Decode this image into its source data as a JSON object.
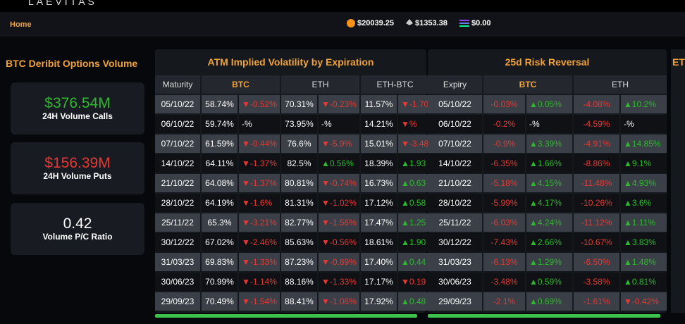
{
  "header": {
    "logo": "LAEVITAS"
  },
  "subheader": {
    "breadcrumb": "Home",
    "prices": [
      "$20039.25",
      "$1353.38",
      "$0.00"
    ]
  },
  "volume_panel": {
    "title": "BTC Deribit Options Volume",
    "cards": [
      {
        "value": "$376.54M",
        "label": "24H Volume Calls"
      },
      {
        "value": "$156.39M",
        "label": "24H Volume Puts"
      },
      {
        "value": "0.42",
        "label": "Volume P/C Ratio"
      }
    ]
  },
  "atm_table": {
    "title": "ATM Implied Volatility by Expiration",
    "columns": [
      "Maturity",
      "BTC",
      "ETH",
      "ETH-BTC"
    ],
    "rows": [
      [
        "05/10/22",
        "58.74%",
        "▼-0.52%",
        "70.31%",
        "▼-0.23%",
        "11.57%",
        "▼-1.70"
      ],
      [
        "06/10/22",
        "59.74%",
        "-%",
        "73.95%",
        "-%",
        "14.21%",
        "▼%"
      ],
      [
        "07/10/22",
        "61.59%",
        "▼-0.44%",
        "76.6%",
        "▼-5.9%",
        "15.01%",
        "▼-3.48"
      ],
      [
        "14/10/22",
        "64.11%",
        "▼-1.37%",
        "82.5%",
        "▲0.56%",
        "18.39%",
        "▲1.93"
      ],
      [
        "21/10/22",
        "64.08%",
        "▼-1.37%",
        "80.81%",
        "▼-0.74%",
        "16.73%",
        "▲0.63"
      ],
      [
        "28/10/22",
        "64.19%",
        "▼-1.6%",
        "81.31%",
        "▼-1.02%",
        "17.12%",
        "▲0.58"
      ],
      [
        "25/11/22",
        "65.3%",
        "▼-3.21%",
        "82.77%",
        "▼-1.56%",
        "17.47%",
        "▲1.25"
      ],
      [
        "30/12/22",
        "67.02%",
        "▼-2.46%",
        "85.63%",
        "▼-0.56%",
        "18.61%",
        "▲1.90"
      ],
      [
        "31/03/23",
        "69.83%",
        "▼-1.33%",
        "87.23%",
        "▼-0.89%",
        "17.40%",
        "▲0.44"
      ],
      [
        "30/06/23",
        "70.99%",
        "▼-1.14%",
        "88.16%",
        "▼-1.33%",
        "17.17%",
        "▼0.19"
      ],
      [
        "29/09/23",
        "70.49%",
        "▼-1.54%",
        "88.41%",
        "▼-1.06%",
        "17.92%",
        "▲0.48"
      ]
    ]
  },
  "rr_table": {
    "title": "25d Risk Reversal",
    "columns": [
      "Expiry",
      "BTC",
      "ETH"
    ],
    "rows": [
      [
        "05/10/22",
        "-0.03%",
        "▲0.05%",
        "-4.08%",
        "▲10.2%"
      ],
      [
        "06/10/22",
        "-0.2%",
        "-%",
        "-4.59%",
        "-%"
      ],
      [
        "07/10/22",
        "-0.9%",
        "▲3.39%",
        "-4.91%",
        "▲14.85%"
      ],
      [
        "14/10/22",
        "-6.35%",
        "▲1.66%",
        "-8.86%",
        "▲9.1%"
      ],
      [
        "21/10/22",
        "-5.18%",
        "▲4.15%",
        "-11.48%",
        "▲4.93%"
      ],
      [
        "28/10/22",
        "-5.99%",
        "▲4.17%",
        "-10.26%",
        "▲3.6%"
      ],
      [
        "25/11/22",
        "-6.03%",
        "▲4.24%",
        "-11.12%",
        "▲1.11%"
      ],
      [
        "30/12/22",
        "-7.43%",
        "▲2.66%",
        "-10.67%",
        "▲3.83%"
      ],
      [
        "31/03/23",
        "-6.13%",
        "▲1.29%",
        "-6.50%",
        "▲1.48%"
      ],
      [
        "30/06/23",
        "-3.48%",
        "▲0.59%",
        "-3.58%",
        "▲0.81%"
      ],
      [
        "29/09/23",
        "-2.1%",
        "▲0.69%",
        "-1.61%",
        "▼-0.42%"
      ]
    ]
  },
  "next_panel": {
    "title": "ET"
  }
}
